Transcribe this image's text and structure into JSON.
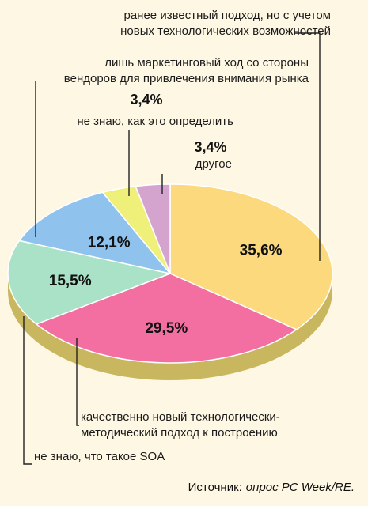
{
  "chart_data": {
    "type": "pie",
    "title": "",
    "slices": [
      {
        "label": "ранее известный подход, но с учетом новых технологических возможностей",
        "value": 35.6,
        "display": "35,6%",
        "color": "#fbd97c"
      },
      {
        "label": "качественно новый технологически-методический подход к построению",
        "value": 29.5,
        "display": "29,5%",
        "color": "#f46fa1"
      },
      {
        "label": "не знаю, что такое SOA",
        "value": 15.5,
        "display": "15,5%",
        "color": "#a9e2c6"
      },
      {
        "label": "лишь маркетинговый ход со стороны вендоров для привлечения внимания рынка",
        "value": 12.1,
        "display": "12,1%",
        "color": "#8fc3ee"
      },
      {
        "label": "не знаю, как это определить",
        "value": 3.4,
        "display": "3,4%",
        "color": "#eef07a"
      },
      {
        "label": "другое",
        "value": 3.4,
        "display": "3,4%",
        "color": "#d4a4cf"
      }
    ],
    "category_lines": [
      [
        "ранее известный подход, но с учетом",
        "новых технологических возможностей"
      ],
      [
        "качественно новый технологически-",
        "методический подход к построению"
      ],
      [
        "не знаю, что такое SOA"
      ],
      [
        "лишь маркетинговый ход со стороны",
        "вендоров для привлечения внимания рынка"
      ],
      [
        "не знаю, как это определить"
      ],
      [
        "другое"
      ]
    ],
    "legend": "none"
  },
  "source": {
    "label": "Источник:",
    "text": "опрос PC Week/RE."
  }
}
